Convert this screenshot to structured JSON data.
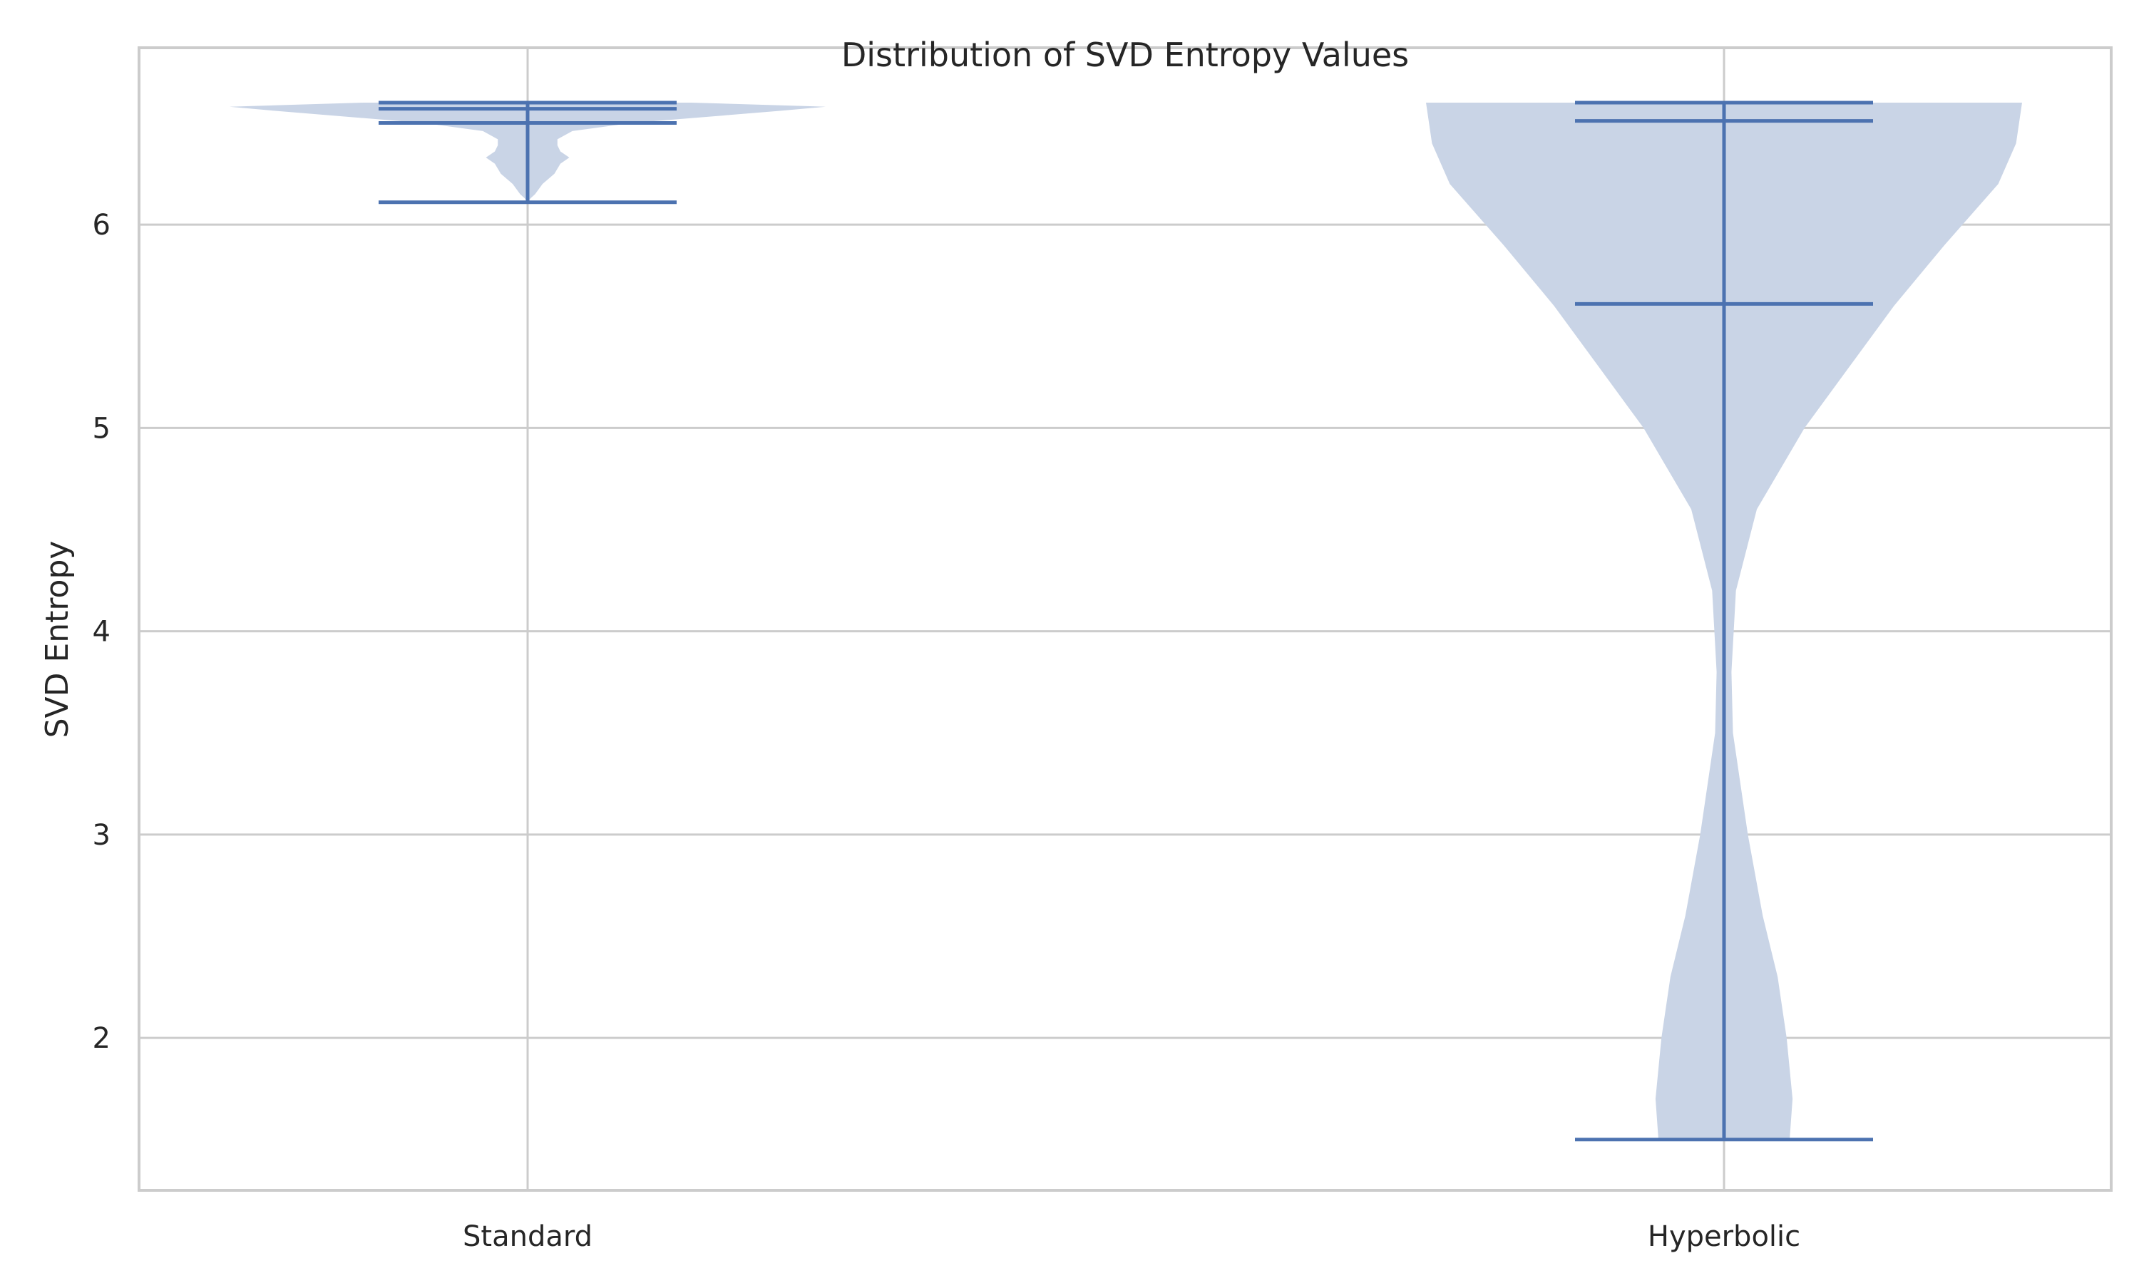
{
  "chart_data": {
    "type": "violin",
    "title": "Distribution of SVD Entropy Values",
    "xlabel": "",
    "ylabel": "SVD Entropy",
    "categories": [
      "Standard",
      "Hyperbolic"
    ],
    "yticks": [
      "2",
      "3",
      "4",
      "5",
      "6"
    ],
    "ylim": [
      1.25,
      6.87
    ],
    "grid": true,
    "colors": {
      "body": "#c9d4e6",
      "lines": "#4c72b0",
      "grid": "#cccccc",
      "text": "#262626"
    },
    "violins": [
      {
        "category": "Standard",
        "min": 6.11,
        "max": 6.6,
        "mean": 6.57,
        "median": 6.5,
        "density": [
          [
            6.11,
            0.0
          ],
          [
            6.13,
            0.01
          ],
          [
            6.15,
            0.025
          ],
          [
            6.2,
            0.05
          ],
          [
            6.25,
            0.09
          ],
          [
            6.3,
            0.11
          ],
          [
            6.33,
            0.14
          ],
          [
            6.36,
            0.11
          ],
          [
            6.39,
            0.1
          ],
          [
            6.42,
            0.1
          ],
          [
            6.46,
            0.15
          ],
          [
            6.5,
            0.35
          ],
          [
            6.53,
            0.6
          ],
          [
            6.56,
            0.85
          ],
          [
            6.58,
            1.0
          ],
          [
            6.6,
            0.55
          ]
        ]
      },
      {
        "category": "Hyperbolic",
        "min": 1.5,
        "max": 6.6,
        "mean": 5.61,
        "median": 6.51,
        "density": [
          [
            1.5,
            0.22
          ],
          [
            1.7,
            0.23
          ],
          [
            2.0,
            0.21
          ],
          [
            2.3,
            0.18
          ],
          [
            2.6,
            0.13
          ],
          [
            3.0,
            0.08
          ],
          [
            3.5,
            0.03
          ],
          [
            3.8,
            0.025
          ],
          [
            4.2,
            0.04
          ],
          [
            4.6,
            0.11
          ],
          [
            5.0,
            0.27
          ],
          [
            5.3,
            0.42
          ],
          [
            5.6,
            0.57
          ],
          [
            5.9,
            0.74
          ],
          [
            6.2,
            0.92
          ],
          [
            6.4,
            0.98
          ],
          [
            6.6,
            1.0
          ]
        ]
      }
    ]
  }
}
